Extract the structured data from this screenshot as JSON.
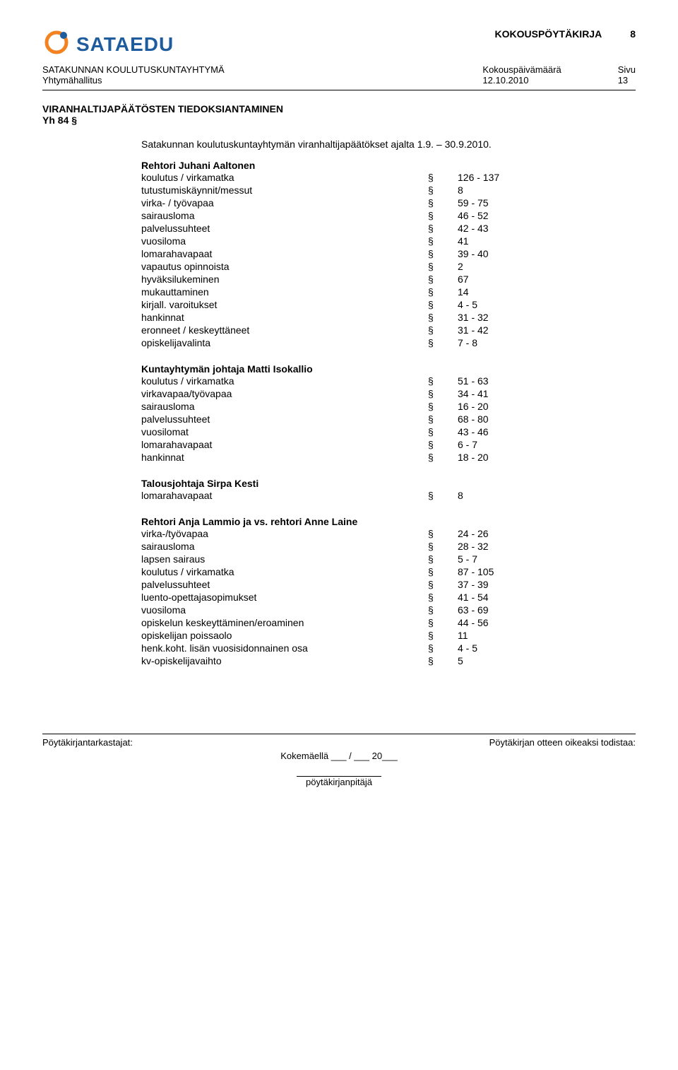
{
  "colors": {
    "brand_blue": "#1f5c9e",
    "brand_orange": "#f58220",
    "text": "#000000",
    "background": "#ffffff",
    "rule": "#000000"
  },
  "typography": {
    "body_fontsize": 14,
    "header_small_fontsize": 13,
    "logo_fontsize": 28
  },
  "header": {
    "logo_text": "SATAEDU",
    "doc_type": "KOKOUSPÖYTÄKIRJA",
    "doc_number": "8",
    "org_line": "SATAKUNNAN KOULUTUSKUNTAYHTYMÄ",
    "board_line": "Yhtymähallitus",
    "date_label": "Kokouspäivämäärä",
    "date_value": "12.10.2010",
    "page_label": "Sivu",
    "page_value": "13"
  },
  "section": {
    "title": "VIRANHALTIJAPÄÄTÖSTEN TIEDOKSIANTAMINEN",
    "yh": "Yh 84 §",
    "intro": "Satakunnan koulutuskuntayhtymän viranhaltijapäätökset ajalta 1.9. – 30.9.2010."
  },
  "groups": [
    {
      "title": "Rehtori Juhani Aaltonen",
      "rows": [
        {
          "label": "koulutus / virkamatka",
          "sym": "§",
          "val": "126 - 137"
        },
        {
          "label": "tutustumiskäynnit/messut",
          "sym": "§",
          "val": "8"
        },
        {
          "label": "virka- / työvapaa",
          "sym": "§",
          "val": "59 - 75"
        },
        {
          "label": "sairausloma",
          "sym": "§",
          "val": "46 - 52"
        },
        {
          "label": "palvelussuhteet",
          "sym": "§",
          "val": "42 - 43"
        },
        {
          "label": "vuosiloma",
          "sym": "§",
          "val": "41"
        },
        {
          "label": "lomarahavapaat",
          "sym": "§",
          "val": "39 - 40"
        },
        {
          "label": "vapautus opinnoista",
          "sym": "§",
          "val": "2"
        },
        {
          "label": "hyväksilukeminen",
          "sym": "§",
          "val": "67"
        },
        {
          "label": "mukauttaminen",
          "sym": "§",
          "val": "14"
        },
        {
          "label": "kirjall. varoitukset",
          "sym": "§",
          "val": "4 - 5"
        },
        {
          "label": "hankinnat",
          "sym": "§",
          "val": "31 - 32"
        },
        {
          "label": "eronneet / keskeyttäneet",
          "sym": "§",
          "val": "31 - 42"
        },
        {
          "label": "opiskelijavalinta",
          "sym": "§",
          "val": "7 - 8"
        }
      ]
    },
    {
      "title": "Kuntayhtymän johtaja Matti Isokallio",
      "rows": [
        {
          "label": "koulutus / virkamatka",
          "sym": "§",
          "val": "51 - 63"
        },
        {
          "label": "virkavapaa/työvapaa",
          "sym": "§",
          "val": "34 - 41"
        },
        {
          "label": "sairausloma",
          "sym": "§",
          "val": "16 - 20"
        },
        {
          "label": "palvelussuhteet",
          "sym": "§",
          "val": "68 - 80"
        },
        {
          "label": "vuosilomat",
          "sym": "§",
          "val": "43 - 46"
        },
        {
          "label": "lomarahavapaat",
          "sym": "§",
          "val": "6 - 7"
        },
        {
          "label": "hankinnat",
          "sym": "§",
          "val": "18 - 20"
        }
      ]
    },
    {
      "title": "Talousjohtaja Sirpa Kesti",
      "rows": [
        {
          "label": "lomarahavapaat",
          "sym": "§",
          "val": "8"
        }
      ]
    },
    {
      "title": "Rehtori Anja Lammio ja vs. rehtori Anne Laine",
      "rows": [
        {
          "label": "virka-/työvapaa",
          "sym": "§",
          "val": "24 - 26"
        },
        {
          "label": "sairausloma",
          "sym": "§",
          "val": "28 - 32"
        },
        {
          "label": "lapsen sairaus",
          "sym": "§",
          "val": "5 - 7"
        },
        {
          "label": "koulutus / virkamatka",
          "sym": "§",
          "val": "87 - 105"
        },
        {
          "label": "palvelussuhteet",
          "sym": "§",
          "val": "37 - 39"
        },
        {
          "label": "luento-opettajasopimukset",
          "sym": "§",
          "val": "41 - 54"
        },
        {
          "label": "vuosiloma",
          "sym": "§",
          "val": "63 - 69"
        },
        {
          "label": "opiskelun keskeyttäminen/eroaminen",
          "sym": "§",
          "val": "44 - 56"
        },
        {
          "label": "opiskelijan poissaolo",
          "sym": "§",
          "val": "11"
        },
        {
          "label": "henk.koht. lisän vuosisidonnainen osa",
          "sym": "§",
          "val": "4 - 5"
        },
        {
          "label": "kv-opiskelijavaihto",
          "sym": "§",
          "val": "5"
        }
      ]
    }
  ],
  "footer": {
    "left": "Pöytäkirjantarkastajat:",
    "right": "Pöytäkirjan otteen oikeaksi todistaa:",
    "center_place": "Kokemäellä ___ / ___ 20___",
    "sign_label": "pöytäkirjanpitäjä"
  }
}
